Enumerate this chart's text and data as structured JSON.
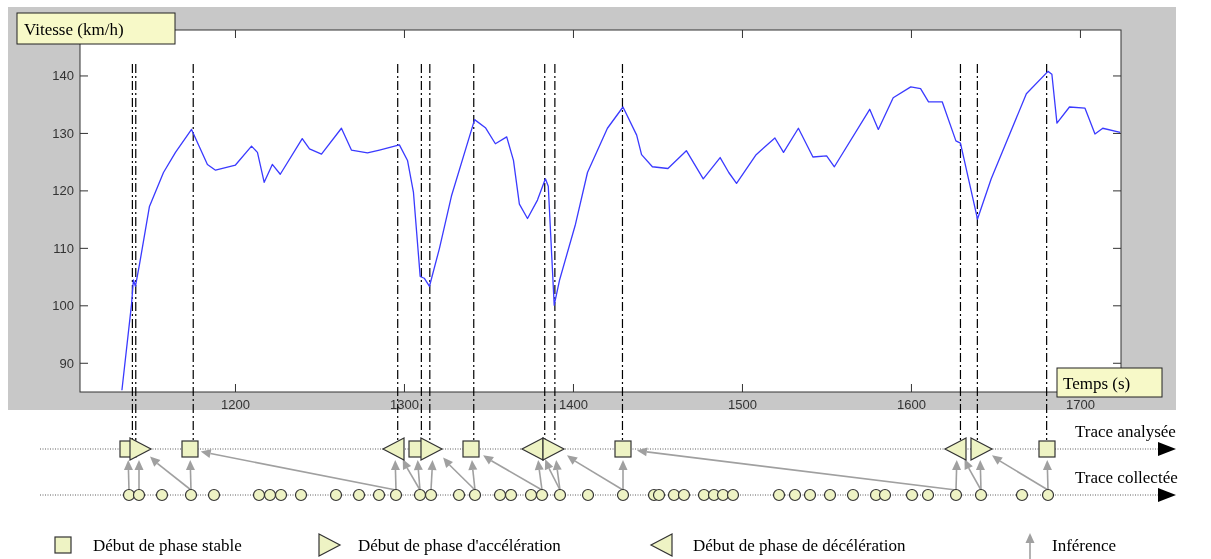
{
  "chart_data": [
    {
      "type": "line",
      "ylabel": "Vitesse (km/h)",
      "xlabel": "Temps (s)",
      "xlim": [
        1108,
        1724
      ],
      "ylim": [
        85,
        148
      ],
      "xticks": [
        1200,
        1300,
        1400,
        1500,
        1600,
        1700
      ],
      "yticks": [
        90,
        100,
        110,
        120,
        130,
        140
      ],
      "grid": false,
      "marker": "none",
      "line_style": "solid",
      "series": [
        {
          "color": "#3a3aff",
          "x": [
            1132.8,
            1138.5,
            1139.6,
            1140.8,
            1143.2,
            1149.1,
            1157.4,
            1164.5,
            1174.0,
            1183.4,
            1188.2,
            1200,
            1209.5,
            1213,
            1217,
            1221.8,
            1226.5,
            1239.5,
            1243.8,
            1250.9,
            1262.7,
            1268.6,
            1278.1,
            1285.2,
            1297,
            1301.8,
            1305.3,
            1309.3,
            1311.7,
            1314.8,
            1320.7,
            1327.8,
            1341.5,
            1347.9,
            1353.8,
            1360.5,
            1364.5,
            1368,
            1372.8,
            1378.7,
            1383.4,
            1385.1,
            1388.6,
            1391.7,
            1401.2,
            1408.3,
            1420.1,
            1429.3,
            1437.4,
            1440.3,
            1446.7,
            1455.9,
            1466.8,
            1476.8,
            1486.8,
            1491.9,
            1496.5,
            1508.1,
            1519.2,
            1524.3,
            1533.1,
            1541.7,
            1549.8,
            1554.4,
            1575.3,
            1580.4,
            1589.2,
            1599.6,
            1605.4,
            1610.1,
            1618.2,
            1626.3,
            1629,
            1639.1,
            1647.2,
            1668,
            1680.8,
            1683.1,
            1686.1,
            1693.5,
            1702.7,
            1708.6,
            1713.2,
            1723.5
          ],
          "values": [
            85.3,
            100.3,
            104.5,
            103.4,
            107.2,
            117.3,
            123.2,
            126.7,
            130.7,
            124.6,
            123.6,
            124.5,
            127.8,
            126.7,
            121.5,
            124.6,
            122.9,
            129.1,
            127.3,
            126.4,
            130.9,
            127.1,
            126.6,
            127.1,
            128.0,
            125.3,
            119.8,
            105.1,
            104.8,
            103.4,
            110.0,
            119.1,
            132.4,
            131.0,
            128.2,
            129.4,
            125.3,
            117.7,
            115.2,
            118.4,
            122.1,
            120.8,
            100.1,
            104.4,
            114.2,
            123.2,
            130.9,
            134.6,
            129.7,
            126.3,
            124.2,
            123.9,
            127.0,
            122.1,
            125.8,
            123.2,
            121.3,
            126.3,
            129.2,
            126.7,
            130.9,
            125.9,
            126.1,
            124.2,
            134.2,
            130.7,
            136.2,
            138.1,
            137.8,
            135.5,
            135.5,
            128.7,
            128.3,
            115.1,
            122.1,
            136.9,
            140.8,
            140.3,
            131.8,
            134.6,
            134.4,
            129.9,
            130.9,
            130.2
          ]
        }
      ],
      "ref_lines": [
        {
          "axis": "x",
          "value": 1139,
          "color": "#000000",
          "line_style": "dashed"
        },
        {
          "axis": "x",
          "value": 1141,
          "color": "#000000",
          "line_style": "dashed"
        },
        {
          "axis": "x",
          "value": 1175,
          "color": "#000000",
          "line_style": "dashed"
        },
        {
          "axis": "x",
          "value": 1296,
          "color": "#000000",
          "line_style": "dashed"
        },
        {
          "axis": "x",
          "value": 1310,
          "color": "#000000",
          "line_style": "dashed"
        },
        {
          "axis": "x",
          "value": 1315,
          "color": "#000000",
          "line_style": "dashed"
        },
        {
          "axis": "x",
          "value": 1341,
          "color": "#000000",
          "line_style": "dashed"
        },
        {
          "axis": "x",
          "value": 1383,
          "color": "#000000",
          "line_style": "dashed"
        },
        {
          "axis": "x",
          "value": 1389,
          "color": "#000000",
          "line_style": "dashed"
        },
        {
          "axis": "x",
          "value": 1429,
          "color": "#000000",
          "line_style": "dashed"
        },
        {
          "axis": "x",
          "value": 1629,
          "color": "#000000",
          "line_style": "dashed"
        },
        {
          "axis": "x",
          "value": 1639,
          "color": "#000000",
          "line_style": "dashed"
        },
        {
          "axis": "x",
          "value": 1680,
          "color": "#000000",
          "line_style": "dashed"
        }
      ]
    },
    {
      "type": "other",
      "annotations": [
        "Trace analysée",
        "Trace collectée",
        "Début de phase stable",
        "Début de phase d'accélération",
        "Début de phase de décélération",
        "Inférence"
      ]
    }
  ]
}
